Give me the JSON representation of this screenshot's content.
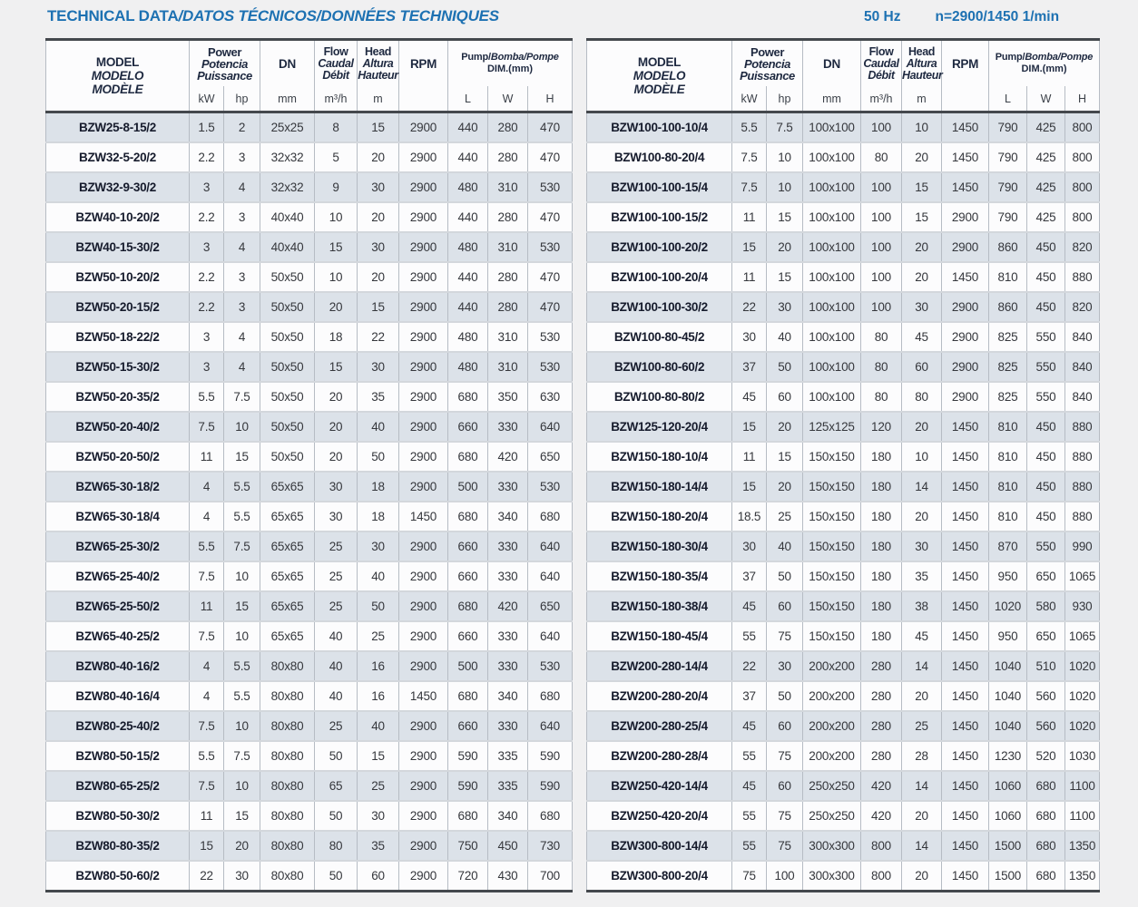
{
  "page": {
    "title_part1": "TECHNICAL DATA",
    "title_part2": "/DATOS TÉCNICOS/DONNÉES TECHNIQUES",
    "frequency": "50 Hz",
    "speed": "n=2900/1450 1/min"
  },
  "colors": {
    "accent_blue": "#1d71b2",
    "header_text": "#1e2940",
    "row_shade": "#dce2e9",
    "thick_rule": "#44484d",
    "page_background": "#f0f0f1"
  },
  "table_header": {
    "model_lines": [
      "MODEL",
      "MODELO",
      "MODÈLE"
    ],
    "power_lines": [
      "Power",
      "Potencia",
      "Puissance"
    ],
    "power_units": [
      "kW",
      "hp"
    ],
    "dn_label": "DN",
    "dn_unit": "mm",
    "flow_lines": [
      "Flow",
      "Caudal",
      "Débit"
    ],
    "flow_unit": "m³/h",
    "head_lines": [
      "Head",
      "Altura",
      "Hauteur"
    ],
    "head_unit": "m",
    "rpm_label": "RPM",
    "rpm_unit": "",
    "dim_line1a": "Pump/",
    "dim_line1b": "Bomba/Pompe",
    "dim_line2": "DIM.(mm)",
    "dim_units": [
      "L",
      "W",
      "H"
    ]
  },
  "left_table": {
    "rows": [
      [
        "BZW25-8-15/2",
        "1.5",
        "2",
        "25x25",
        "8",
        "15",
        "2900",
        "440",
        "280",
        "470"
      ],
      [
        "BZW32-5-20/2",
        "2.2",
        "3",
        "32x32",
        "5",
        "20",
        "2900",
        "440",
        "280",
        "470"
      ],
      [
        "BZW32-9-30/2",
        "3",
        "4",
        "32x32",
        "9",
        "30",
        "2900",
        "480",
        "310",
        "530"
      ],
      [
        "BZW40-10-20/2",
        "2.2",
        "3",
        "40x40",
        "10",
        "20",
        "2900",
        "440",
        "280",
        "470"
      ],
      [
        "BZW40-15-30/2",
        "3",
        "4",
        "40x40",
        "15",
        "30",
        "2900",
        "480",
        "310",
        "530"
      ],
      [
        "BZW50-10-20/2",
        "2.2",
        "3",
        "50x50",
        "10",
        "20",
        "2900",
        "440",
        "280",
        "470"
      ],
      [
        "BZW50-20-15/2",
        "2.2",
        "3",
        "50x50",
        "20",
        "15",
        "2900",
        "440",
        "280",
        "470"
      ],
      [
        "BZW50-18-22/2",
        "3",
        "4",
        "50x50",
        "18",
        "22",
        "2900",
        "480",
        "310",
        "530"
      ],
      [
        "BZW50-15-30/2",
        "3",
        "4",
        "50x50",
        "15",
        "30",
        "2900",
        "480",
        "310",
        "530"
      ],
      [
        "BZW50-20-35/2",
        "5.5",
        "7.5",
        "50x50",
        "20",
        "35",
        "2900",
        "680",
        "350",
        "630"
      ],
      [
        "BZW50-20-40/2",
        "7.5",
        "10",
        "50x50",
        "20",
        "40",
        "2900",
        "660",
        "330",
        "640"
      ],
      [
        "BZW50-20-50/2",
        "11",
        "15",
        "50x50",
        "20",
        "50",
        "2900",
        "680",
        "420",
        "650"
      ],
      [
        "BZW65-30-18/2",
        "4",
        "5.5",
        "65x65",
        "30",
        "18",
        "2900",
        "500",
        "330",
        "530"
      ],
      [
        "BZW65-30-18/4",
        "4",
        "5.5",
        "65x65",
        "30",
        "18",
        "1450",
        "680",
        "340",
        "680"
      ],
      [
        "BZW65-25-30/2",
        "5.5",
        "7.5",
        "65x65",
        "25",
        "30",
        "2900",
        "660",
        "330",
        "640"
      ],
      [
        "BZW65-25-40/2",
        "7.5",
        "10",
        "65x65",
        "25",
        "40",
        "2900",
        "660",
        "330",
        "640"
      ],
      [
        "BZW65-25-50/2",
        "11",
        "15",
        "65x65",
        "25",
        "50",
        "2900",
        "680",
        "420",
        "650"
      ],
      [
        "BZW65-40-25/2",
        "7.5",
        "10",
        "65x65",
        "40",
        "25",
        "2900",
        "660",
        "330",
        "640"
      ],
      [
        "BZW80-40-16/2",
        "4",
        "5.5",
        "80x80",
        "40",
        "16",
        "2900",
        "500",
        "330",
        "530"
      ],
      [
        "BZW80-40-16/4",
        "4",
        "5.5",
        "80x80",
        "40",
        "16",
        "1450",
        "680",
        "340",
        "680"
      ],
      [
        "BZW80-25-40/2",
        "7.5",
        "10",
        "80x80",
        "25",
        "40",
        "2900",
        "660",
        "330",
        "640"
      ],
      [
        "BZW80-50-15/2",
        "5.5",
        "7.5",
        "80x80",
        "50",
        "15",
        "2900",
        "590",
        "335",
        "590"
      ],
      [
        "BZW80-65-25/2",
        "7.5",
        "10",
        "80x80",
        "65",
        "25",
        "2900",
        "590",
        "335",
        "590"
      ],
      [
        "BZW80-50-30/2",
        "11",
        "15",
        "80x80",
        "50",
        "30",
        "2900",
        "680",
        "340",
        "680"
      ],
      [
        "BZW80-80-35/2",
        "15",
        "20",
        "80x80",
        "80",
        "35",
        "2900",
        "750",
        "450",
        "730"
      ],
      [
        "BZW80-50-60/2",
        "22",
        "30",
        "80x80",
        "50",
        "60",
        "2900",
        "720",
        "430",
        "700"
      ]
    ]
  },
  "right_table": {
    "rows": [
      [
        "BZW100-100-10/4",
        "5.5",
        "7.5",
        "100x100",
        "100",
        "10",
        "1450",
        "790",
        "425",
        "800"
      ],
      [
        "BZW100-80-20/4",
        "7.5",
        "10",
        "100x100",
        "80",
        "20",
        "1450",
        "790",
        "425",
        "800"
      ],
      [
        "BZW100-100-15/4",
        "7.5",
        "10",
        "100x100",
        "100",
        "15",
        "1450",
        "790",
        "425",
        "800"
      ],
      [
        "BZW100-100-15/2",
        "11",
        "15",
        "100x100",
        "100",
        "15",
        "2900",
        "790",
        "425",
        "800"
      ],
      [
        "BZW100-100-20/2",
        "15",
        "20",
        "100x100",
        "100",
        "20",
        "2900",
        "860",
        "450",
        "820"
      ],
      [
        "BZW100-100-20/4",
        "11",
        "15",
        "100x100",
        "100",
        "20",
        "1450",
        "810",
        "450",
        "880"
      ],
      [
        "BZW100-100-30/2",
        "22",
        "30",
        "100x100",
        "100",
        "30",
        "2900",
        "860",
        "450",
        "820"
      ],
      [
        "BZW100-80-45/2",
        "30",
        "40",
        "100x100",
        "80",
        "45",
        "2900",
        "825",
        "550",
        "840"
      ],
      [
        "BZW100-80-60/2",
        "37",
        "50",
        "100x100",
        "80",
        "60",
        "2900",
        "825",
        "550",
        "840"
      ],
      [
        "BZW100-80-80/2",
        "45",
        "60",
        "100x100",
        "80",
        "80",
        "2900",
        "825",
        "550",
        "840"
      ],
      [
        "BZW125-120-20/4",
        "15",
        "20",
        "125x125",
        "120",
        "20",
        "1450",
        "810",
        "450",
        "880"
      ],
      [
        "BZW150-180-10/4",
        "11",
        "15",
        "150x150",
        "180",
        "10",
        "1450",
        "810",
        "450",
        "880"
      ],
      [
        "BZW150-180-14/4",
        "15",
        "20",
        "150x150",
        "180",
        "14",
        "1450",
        "810",
        "450",
        "880"
      ],
      [
        "BZW150-180-20/4",
        "18.5",
        "25",
        "150x150",
        "180",
        "20",
        "1450",
        "810",
        "450",
        "880"
      ],
      [
        "BZW150-180-30/4",
        "30",
        "40",
        "150x150",
        "180",
        "30",
        "1450",
        "870",
        "550",
        "990"
      ],
      [
        "BZW150-180-35/4",
        "37",
        "50",
        "150x150",
        "180",
        "35",
        "1450",
        "950",
        "650",
        "1065"
      ],
      [
        "BZW150-180-38/4",
        "45",
        "60",
        "150x150",
        "180",
        "38",
        "1450",
        "1020",
        "580",
        "930"
      ],
      [
        "BZW150-180-45/4",
        "55",
        "75",
        "150x150",
        "180",
        "45",
        "1450",
        "950",
        "650",
        "1065"
      ],
      [
        "BZW200-280-14/4",
        "22",
        "30",
        "200x200",
        "280",
        "14",
        "1450",
        "1040",
        "510",
        "1020"
      ],
      [
        "BZW200-280-20/4",
        "37",
        "50",
        "200x200",
        "280",
        "20",
        "1450",
        "1040",
        "560",
        "1020"
      ],
      [
        "BZW200-280-25/4",
        "45",
        "60",
        "200x200",
        "280",
        "25",
        "1450",
        "1040",
        "560",
        "1020"
      ],
      [
        "BZW200-280-28/4",
        "55",
        "75",
        "200x200",
        "280",
        "28",
        "1450",
        "1230",
        "520",
        "1030"
      ],
      [
        "BZW250-420-14/4",
        "45",
        "60",
        "250x250",
        "420",
        "14",
        "1450",
        "1060",
        "680",
        "1100"
      ],
      [
        "BZW250-420-20/4",
        "55",
        "75",
        "250x250",
        "420",
        "20",
        "1450",
        "1060",
        "680",
        "1100"
      ],
      [
        "BZW300-800-14/4",
        "55",
        "75",
        "300x300",
        "800",
        "14",
        "1450",
        "1500",
        "680",
        "1350"
      ],
      [
        "BZW300-800-20/4",
        "75",
        "100",
        "300x300",
        "800",
        "20",
        "1450",
        "1500",
        "680",
        "1350"
      ]
    ]
  }
}
